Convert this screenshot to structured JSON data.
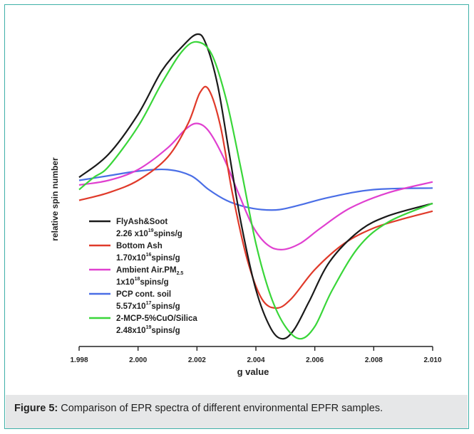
{
  "caption": {
    "label": "Figure 5:",
    "text": "Comparison of EPR spectra of different environmental EPFR samples."
  },
  "chart_data": {
    "type": "line",
    "title": "",
    "xlabel": "g value",
    "ylabel": "relative spin number",
    "xlim": [
      1.998,
      2.01
    ],
    "ylim": [
      -1.05,
      1.05
    ],
    "x_ticks": [
      "1.998",
      "2.000",
      "2.002",
      "2.004",
      "2.006",
      "2.008",
      "2.010"
    ],
    "grid": false,
    "legend_position": "lower-left inside",
    "series": [
      {
        "name": "FlyAsh&Soot",
        "sublabel": "2.26 x10",
        "sup": "19",
        "suffix": "spins/g",
        "color": "#1a1a1a",
        "x": [
          1.998,
          1.999,
          2.0,
          2.0008,
          2.0015,
          2.002,
          2.0023,
          2.0027,
          2.0031,
          2.0035,
          2.004,
          2.0045,
          2.0049,
          2.0053,
          2.0058,
          2.0065,
          2.0075,
          2.0085,
          2.01
        ],
        "y": [
          0.05,
          0.2,
          0.46,
          0.74,
          0.9,
          0.98,
          0.92,
          0.65,
          0.2,
          -0.25,
          -0.68,
          -0.93,
          -1.0,
          -0.94,
          -0.76,
          -0.5,
          -0.3,
          -0.2,
          -0.12
        ]
      },
      {
        "name": "Bottom Ash",
        "sublabel": "1.70x10",
        "sup": "16",
        "suffix": "spins/g",
        "color": "#e03a2a",
        "x": [
          1.998,
          1.999,
          2.0,
          2.001,
          2.0017,
          2.0021,
          2.0024,
          2.0028,
          2.0032,
          2.0037,
          2.0042,
          2.0047,
          2.0052,
          2.006,
          2.007,
          2.008,
          2.009,
          2.01
        ],
        "y": [
          -0.1,
          -0.05,
          0.03,
          0.18,
          0.4,
          0.6,
          0.62,
          0.38,
          -0.05,
          -0.48,
          -0.74,
          -0.8,
          -0.74,
          -0.55,
          -0.38,
          -0.28,
          -0.22,
          -0.17
        ]
      },
      {
        "name": "Ambient Air.PM",
        "name_sub": "2.5",
        "sublabel": "1x10",
        "sup": "18",
        "suffix": "spins/g",
        "color": "#e040d0",
        "x": [
          1.998,
          1.999,
          2.0,
          2.001,
          2.0016,
          2.002,
          2.0024,
          2.0029,
          2.0034,
          2.0039,
          2.0044,
          2.0049,
          2.0055,
          2.0062,
          2.0072,
          2.0085,
          2.01
        ],
        "y": [
          0.0,
          0.03,
          0.1,
          0.24,
          0.36,
          0.4,
          0.35,
          0.18,
          -0.05,
          -0.27,
          -0.39,
          -0.42,
          -0.38,
          -0.28,
          -0.15,
          -0.05,
          0.02
        ]
      },
      {
        "name": "PCP cont. soil",
        "sublabel": "5.57x10",
        "sup": "17",
        "suffix": "spins/g",
        "color": "#4a6ee6",
        "x": [
          1.998,
          1.999,
          2.0,
          2.001,
          2.0018,
          2.0024,
          2.003,
          2.0036,
          2.0042,
          2.0048,
          2.0055,
          2.0065,
          2.008,
          2.01
        ],
        "y": [
          0.03,
          0.06,
          0.09,
          0.1,
          0.06,
          -0.03,
          -0.1,
          -0.14,
          -0.16,
          -0.16,
          -0.13,
          -0.08,
          -0.03,
          -0.02
        ]
      },
      {
        "name": "2-MCP-5%CuO/Silica",
        "sublabel": "2.48x10",
        "sup": "19",
        "suffix": "spins/g",
        "color": "#39d639",
        "x": [
          1.998,
          1.9985,
          1.999,
          2.0,
          2.0008,
          2.0015,
          2.002,
          2.0025,
          2.003,
          2.0035,
          2.004,
          2.0045,
          2.005,
          2.0055,
          2.006,
          2.0066,
          2.0075,
          2.0085,
          2.01
        ],
        "y": [
          -0.03,
          0.05,
          0.12,
          0.38,
          0.66,
          0.87,
          0.93,
          0.85,
          0.55,
          0.1,
          -0.38,
          -0.72,
          -0.92,
          -1.0,
          -0.92,
          -0.68,
          -0.4,
          -0.24,
          -0.12
        ]
      }
    ]
  }
}
